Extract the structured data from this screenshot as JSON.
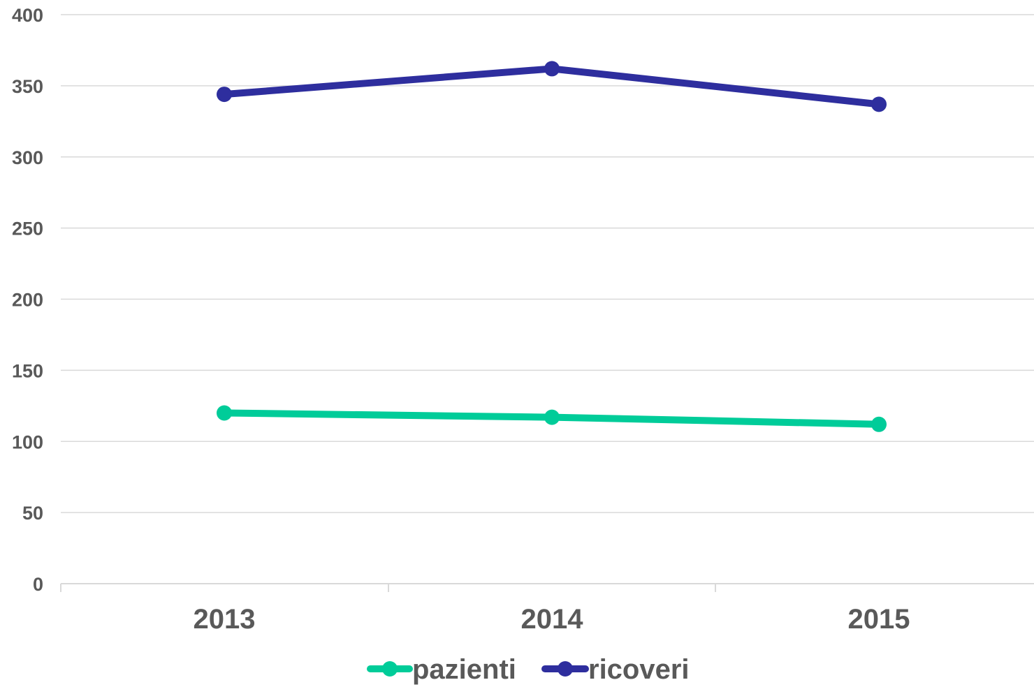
{
  "chart_data": {
    "type": "line",
    "categories": [
      "2013",
      "2014",
      "2015"
    ],
    "series": [
      {
        "name": "pazienti",
        "values": [
          120,
          117,
          112
        ],
        "color": "#00cc99"
      },
      {
        "name": "ricoveri",
        "values": [
          344,
          362,
          337
        ],
        "color": "#2e2e9e"
      }
    ],
    "y_ticks": [
      "0",
      "50",
      "100",
      "150",
      "200",
      "250",
      "300",
      "350",
      "400"
    ],
    "ylim": [
      0,
      400
    ],
    "title": "",
    "xlabel": "",
    "ylabel": "",
    "grid": true,
    "legend_position": "bottom-center"
  }
}
